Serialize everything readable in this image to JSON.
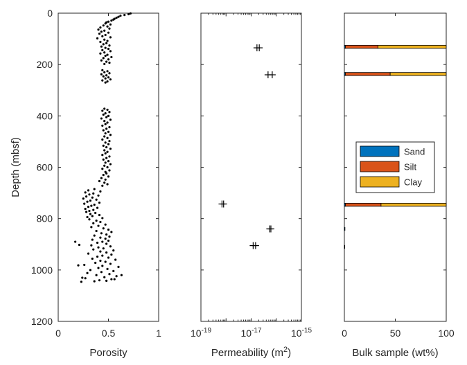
{
  "chart_data": [
    {
      "type": "scatter",
      "ylabel": "Depth (mbsf)",
      "xlabel": "Porosity",
      "xlim": [
        0,
        1
      ],
      "ylim": [
        0,
        1200
      ],
      "y_reversed": true,
      "xticks": [
        "0",
        "0.5",
        "1"
      ],
      "yticks": [
        "0",
        "200",
        "400",
        "600",
        "800",
        "1000",
        "1200"
      ],
      "marker": "dot",
      "color": "#000000",
      "points": [
        [
          0.72,
          1
        ],
        [
          0.7,
          4
        ],
        [
          0.66,
          7
        ],
        [
          0.62,
          10
        ],
        [
          0.6,
          14
        ],
        [
          0.58,
          18
        ],
        [
          0.56,
          22
        ],
        [
          0.55,
          25
        ],
        [
          0.53,
          29
        ],
        [
          0.5,
          33
        ],
        [
          0.48,
          36
        ],
        [
          0.47,
          40
        ],
        [
          0.52,
          44
        ],
        [
          0.45,
          48
        ],
        [
          0.49,
          52
        ],
        [
          0.42,
          56
        ],
        [
          0.51,
          60
        ],
        [
          0.4,
          64
        ],
        [
          0.46,
          68
        ],
        [
          0.43,
          72
        ],
        [
          0.5,
          76
        ],
        [
          0.41,
          80
        ],
        [
          0.47,
          85
        ],
        [
          0.44,
          90
        ],
        [
          0.52,
          94
        ],
        [
          0.39,
          98
        ],
        [
          0.46,
          103
        ],
        [
          0.49,
          108
        ],
        [
          0.42,
          112
        ],
        [
          0.48,
          117
        ],
        [
          0.45,
          121
        ],
        [
          0.51,
          126
        ],
        [
          0.43,
          130
        ],
        [
          0.47,
          135
        ],
        [
          0.5,
          139
        ],
        [
          0.44,
          144
        ],
        [
          0.52,
          148
        ],
        [
          0.46,
          153
        ],
        [
          0.42,
          157
        ],
        [
          0.49,
          162
        ],
        [
          0.47,
          166
        ],
        [
          0.53,
          171
        ],
        [
          0.45,
          175
        ],
        [
          0.5,
          180
        ],
        [
          0.43,
          184
        ],
        [
          0.48,
          189
        ],
        [
          0.51,
          193
        ],
        [
          0.46,
          198
        ],
        [
          0.44,
          222
        ],
        [
          0.49,
          226
        ],
        [
          0.46,
          230
        ],
        [
          0.51,
          234
        ],
        [
          0.43,
          238
        ],
        [
          0.48,
          242
        ],
        [
          0.45,
          246
        ],
        [
          0.5,
          250
        ],
        [
          0.47,
          254
        ],
        [
          0.52,
          258
        ],
        [
          0.44,
          262
        ],
        [
          0.49,
          266
        ],
        [
          0.47,
          270
        ],
        [
          0.46,
          372
        ],
        [
          0.49,
          376
        ],
        [
          0.44,
          380
        ],
        [
          0.51,
          385
        ],
        [
          0.47,
          390
        ],
        [
          0.45,
          395
        ],
        [
          0.5,
          400
        ],
        [
          0.48,
          405
        ],
        [
          0.43,
          410
        ],
        [
          0.52,
          415
        ],
        [
          0.46,
          420
        ],
        [
          0.49,
          426
        ],
        [
          0.47,
          432
        ],
        [
          0.44,
          438
        ],
        [
          0.51,
          444
        ],
        [
          0.48,
          450
        ],
        [
          0.45,
          456
        ],
        [
          0.5,
          462
        ],
        [
          0.47,
          468
        ],
        [
          0.52,
          474
        ],
        [
          0.46,
          480
        ],
        [
          0.49,
          486
        ],
        [
          0.44,
          492
        ],
        [
          0.51,
          498
        ],
        [
          0.47,
          504
        ],
        [
          0.5,
          510
        ],
        [
          0.45,
          516
        ],
        [
          0.48,
          522
        ],
        [
          0.52,
          528
        ],
        [
          0.46,
          534
        ],
        [
          0.49,
          540
        ],
        [
          0.47,
          546
        ],
        [
          0.44,
          552
        ],
        [
          0.51,
          558
        ],
        [
          0.48,
          564
        ],
        [
          0.45,
          570
        ],
        [
          0.5,
          576
        ],
        [
          0.47,
          582
        ],
        [
          0.52,
          588
        ],
        [
          0.46,
          594
        ],
        [
          0.49,
          600
        ],
        [
          0.44,
          606
        ],
        [
          0.51,
          612
        ],
        [
          0.47,
          618
        ],
        [
          0.48,
          624
        ],
        [
          0.45,
          630
        ],
        [
          0.5,
          636
        ],
        [
          0.43,
          642
        ],
        [
          0.47,
          648
        ],
        [
          0.41,
          654
        ],
        [
          0.46,
          660
        ],
        [
          0.49,
          666
        ],
        [
          0.44,
          672
        ],
        [
          0.36,
          685
        ],
        [
          0.3,
          690
        ],
        [
          0.42,
          694
        ],
        [
          0.27,
          698
        ],
        [
          0.35,
          702
        ],
        [
          0.31,
          706
        ],
        [
          0.4,
          710
        ],
        [
          0.28,
          714
        ],
        [
          0.34,
          718
        ],
        [
          0.25,
          722
        ],
        [
          0.38,
          726
        ],
        [
          0.32,
          730
        ],
        [
          0.29,
          734
        ],
        [
          0.41,
          738
        ],
        [
          0.26,
          742
        ],
        [
          0.36,
          746
        ],
        [
          0.33,
          750
        ],
        [
          0.3,
          754
        ],
        [
          0.39,
          758
        ],
        [
          0.27,
          762
        ],
        [
          0.35,
          766
        ],
        [
          0.31,
          770
        ],
        [
          0.28,
          774
        ],
        [
          0.37,
          778
        ],
        [
          0.32,
          782
        ],
        [
          0.41,
          786
        ],
        [
          0.34,
          790
        ],
        [
          0.29,
          794
        ],
        [
          0.44,
          798
        ],
        [
          0.31,
          803
        ],
        [
          0.38,
          808
        ],
        [
          0.42,
          813
        ],
        [
          0.35,
          818
        ],
        [
          0.47,
          823
        ],
        [
          0.4,
          828
        ],
        [
          0.33,
          833
        ],
        [
          0.45,
          838
        ],
        [
          0.5,
          843
        ],
        [
          0.38,
          848
        ],
        [
          0.53,
          852
        ],
        [
          0.43,
          857
        ],
        [
          0.48,
          862
        ],
        [
          0.36,
          866
        ],
        [
          0.51,
          870
        ],
        [
          0.42,
          874
        ],
        [
          0.47,
          878
        ],
        [
          0.34,
          882
        ],
        [
          0.5,
          886
        ],
        [
          0.44,
          890
        ],
        [
          0.39,
          894
        ],
        [
          0.48,
          898
        ],
        [
          0.17,
          890
        ],
        [
          0.21,
          902
        ],
        [
          0.33,
          904
        ],
        [
          0.52,
          908
        ],
        [
          0.4,
          912
        ],
        [
          0.45,
          916
        ],
        [
          0.35,
          920
        ],
        [
          0.55,
          924
        ],
        [
          0.42,
          928
        ],
        [
          0.48,
          932
        ],
        [
          0.3,
          936
        ],
        [
          0.53,
          940
        ],
        [
          0.44,
          944
        ],
        [
          0.39,
          948
        ],
        [
          0.5,
          952
        ],
        [
          0.34,
          956
        ],
        [
          0.57,
          960
        ],
        [
          0.42,
          964
        ],
        [
          0.47,
          968
        ],
        [
          0.37,
          972
        ],
        [
          0.52,
          976
        ],
        [
          0.26,
          980
        ],
        [
          0.44,
          984
        ],
        [
          0.6,
          988
        ],
        [
          0.4,
          992
        ],
        [
          0.49,
          996
        ],
        [
          0.32,
          1000
        ],
        [
          0.55,
          1004
        ],
        [
          0.43,
          1008
        ],
        [
          0.29,
          1012
        ],
        [
          0.51,
          1016
        ],
        [
          0.38,
          1020
        ],
        [
          0.58,
          1024
        ],
        [
          0.46,
          1028
        ],
        [
          0.27,
          1032
        ],
        [
          0.53,
          1036
        ],
        [
          0.41,
          1040
        ],
        [
          0.23,
          1046
        ],
        [
          0.48,
          1042
        ],
        [
          0.63,
          1020
        ],
        [
          0.24,
          1030
        ],
        [
          0.2,
          982
        ],
        [
          0.56,
          1036
        ],
        [
          0.36,
          1044
        ]
      ]
    },
    {
      "type": "scatter",
      "xlabel": "Permeability (m",
      "xlabel_sup": "2",
      "xlabel_close": ")",
      "xscale": "log",
      "xlim": [
        1e-19,
        1e-15
      ],
      "ylim": [
        0,
        1200
      ],
      "y_reversed": true,
      "xticks": [
        {
          "base": "10",
          "exp": "-19",
          "value": 1e-19
        },
        {
          "base": "10",
          "exp": "-17",
          "value": 1e-17
        },
        {
          "base": "10",
          "exp": "-15",
          "value": 1e-15
        }
      ],
      "marker": "plus",
      "color": "#000000",
      "points": [
        [
          1.7e-17,
          135
        ],
        [
          2.1e-17,
          135
        ],
        [
          4.7e-17,
          240
        ],
        [
          6.9e-17,
          240
        ],
        [
          8e-19,
          743
        ],
        [
          6.9e-19,
          743
        ],
        [
          6.1e-17,
          840
        ],
        [
          5.5e-17,
          840
        ],
        [
          1.2e-17,
          905
        ],
        [
          1.5e-17,
          905
        ]
      ]
    },
    {
      "type": "bar",
      "orientation": "horizontal",
      "stacked": true,
      "xlabel": "Bulk sample (wt%)",
      "xlim": [
        0,
        100
      ],
      "ylim": [
        0,
        1200
      ],
      "y_reversed": true,
      "xticks": [
        "0",
        "50",
        "100"
      ],
      "legend_position": "right",
      "categories": [
        131,
        237,
        746,
        840,
        910
      ],
      "series": [
        {
          "name": "Sand",
          "color": "#0072BD",
          "values": [
            1,
            1,
            1,
            0.6,
            0.4
          ]
        },
        {
          "name": "Silt",
          "color": "#D95319",
          "values": [
            32,
            44,
            35,
            0,
            0
          ]
        },
        {
          "name": "Clay",
          "color": "#EDB120",
          "values": [
            67,
            55,
            64,
            0,
            0
          ]
        }
      ],
      "bar_height": 12
    }
  ]
}
